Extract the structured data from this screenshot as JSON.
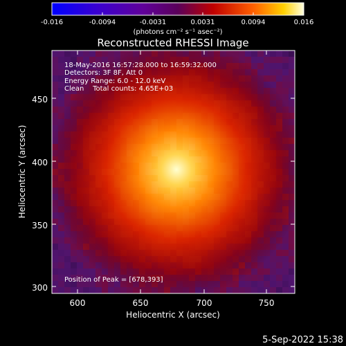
{
  "colorbar": {
    "tick_labels": [
      "-0.016",
      "-0.0094",
      "-0.0031",
      "0.0031",
      "0.0094",
      "0.016"
    ],
    "units": "(photons cm⁻² s⁻¹ asec⁻²)"
  },
  "title": "Reconstructed RHESSI Image",
  "annotations": {
    "time_range": "18-May-2016 16:57:28.000 to 16:59:32.000",
    "detectors": "Detectors: 3F 8F, Att 0",
    "energy_range": "Energy Range: 6.0 - 12.0 keV",
    "clean_counts": "Clean    Total counts: 4.65E+03",
    "peak": "Position of Peak = [678,393]"
  },
  "axes": {
    "x_label": "Heliocentric X (arcsec)",
    "y_label": "Heliocentric Y (arcsec)",
    "x_ticks": [
      "600",
      "650",
      "700",
      "750"
    ],
    "y_ticks": [
      "300",
      "350",
      "400",
      "450"
    ]
  },
  "footer_date": "5-Sep-2022 15:38",
  "colors": {
    "background": "#000000",
    "frame": "#ffffff"
  }
}
